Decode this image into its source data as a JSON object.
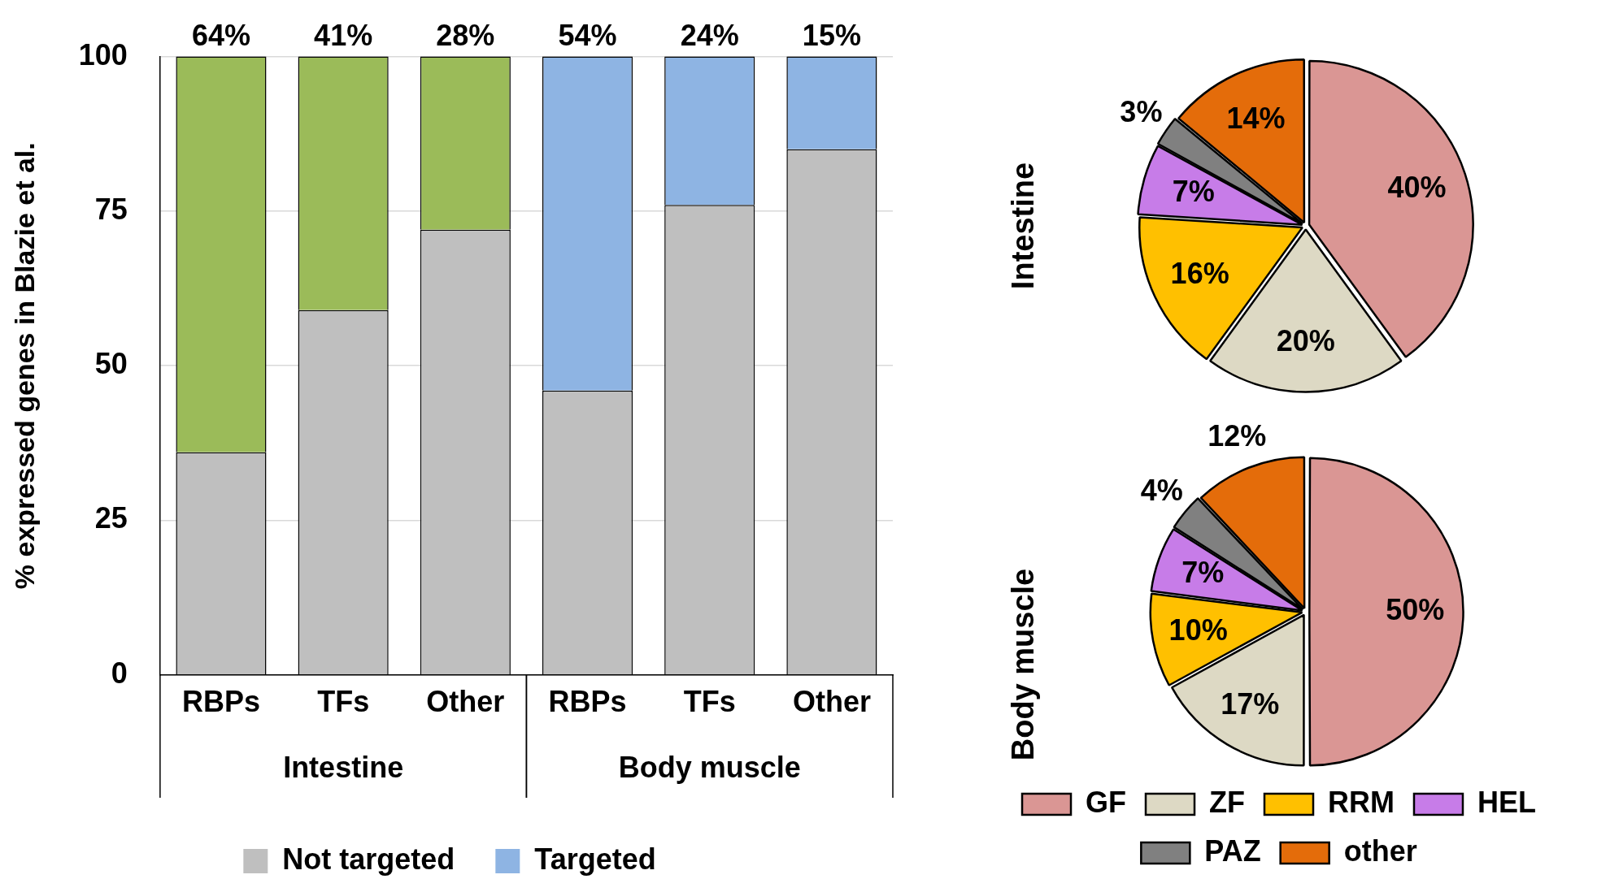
{
  "chart_data": [
    {
      "type": "bar",
      "ylabel": "% expressed genes in Blazie et al.",
      "categories": [
        "RBPs",
        "TFs",
        "Other",
        "RBPs",
        "TFs",
        "Other"
      ],
      "stacked": true,
      "ylim": [
        0,
        100
      ],
      "yticks": [
        0,
        25,
        50,
        75,
        100
      ],
      "grid": "y",
      "legend": "bottom",
      "annotations": [
        "Intestine",
        "Body muscle"
      ],
      "series": [
        {
          "name": "Not targeted",
          "color": "#bfbfbf",
          "values": [
            36,
            59,
            72,
            46,
            76,
            85
          ]
        },
        {
          "name": "Targeted",
          "colors": [
            "#9bbb59",
            "#9bbb59",
            "#9bbb59",
            "#8eb4e3",
            "#8eb4e3",
            "#8eb4e3"
          ],
          "values": [
            64,
            41,
            28,
            54,
            24,
            15
          ],
          "value_labels": [
            "64%",
            "41%",
            "28%",
            "54%",
            "24%",
            "15%"
          ]
        }
      ]
    },
    {
      "type": "pie",
      "title": "Intestine",
      "categories": [
        null,
        null,
        null,
        null,
        null,
        null
      ],
      "values": [
        40,
        20,
        16,
        7,
        3,
        14
      ],
      "value_labels": [
        "40%",
        "20%",
        "16%",
        "7%",
        "3%",
        "14%"
      ],
      "colors": [
        "#da9694",
        "#ddd9c4",
        "#ffc000",
        "#c77ce8",
        "#808080",
        "#e46c0a"
      ]
    },
    {
      "type": "pie",
      "title": "Body muscle",
      "categories": [
        "GF",
        "ZF",
        "RRM",
        "HEL",
        "PAZ",
        "other"
      ],
      "values": [
        50,
        17,
        10,
        7,
        4,
        12
      ],
      "value_labels": [
        "50%",
        "17%",
        "10%",
        "7%",
        "4%",
        "12%"
      ],
      "colors": [
        "#da9694",
        "#ddd9c4",
        "#ffc000",
        "#c77ce8",
        "#808080",
        "#e46c0a"
      ],
      "legend": "bottom"
    }
  ]
}
